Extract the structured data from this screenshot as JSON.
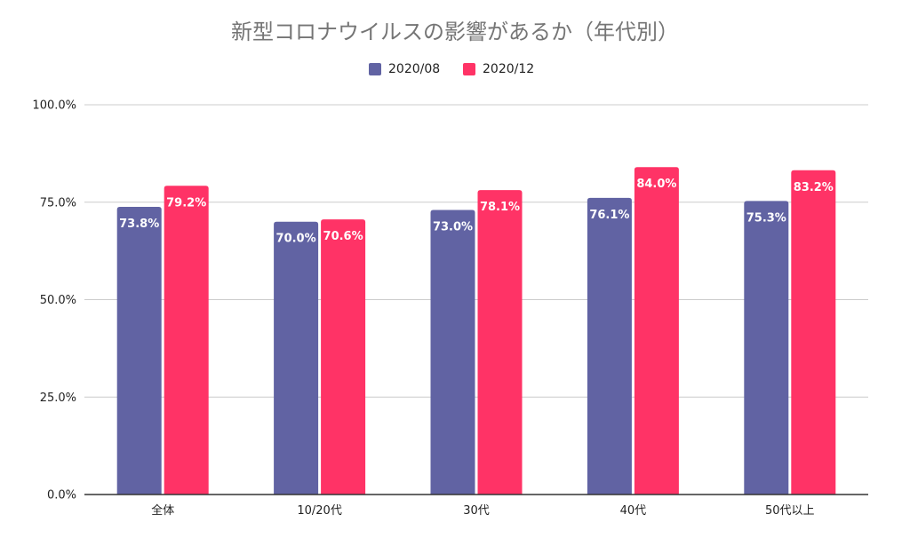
{
  "colors": {
    "series1": "#6163a3",
    "series2": "#ff3366",
    "grid": "#cccccc",
    "axis": "#333333"
  },
  "chart_data": {
    "type": "bar",
    "title": "新型コロナウイルスの影響があるか（年代別）",
    "categories": [
      "全体",
      "10/20代",
      "30代",
      "40代",
      "50代以上"
    ],
    "series": [
      {
        "name": "2020/08",
        "values": [
          73.8,
          70.0,
          73.0,
          76.1,
          75.3
        ],
        "labels": [
          "73.8%",
          "70.0%",
          "73.0%",
          "76.1%",
          "75.3%"
        ]
      },
      {
        "name": "2020/12",
        "values": [
          79.2,
          70.6,
          78.1,
          84.0,
          83.2
        ],
        "labels": [
          "79.2%",
          "70.6%",
          "78.1%",
          "84.0%",
          "83.2%"
        ]
      }
    ],
    "ylim": [
      0,
      100
    ],
    "yticks": [
      0,
      25,
      50,
      75,
      100
    ],
    "ytick_labels": [
      "0.0%",
      "25.0%",
      "50.0%",
      "75.0%",
      "100.0%"
    ],
    "grid": true,
    "legend_position": "top"
  }
}
